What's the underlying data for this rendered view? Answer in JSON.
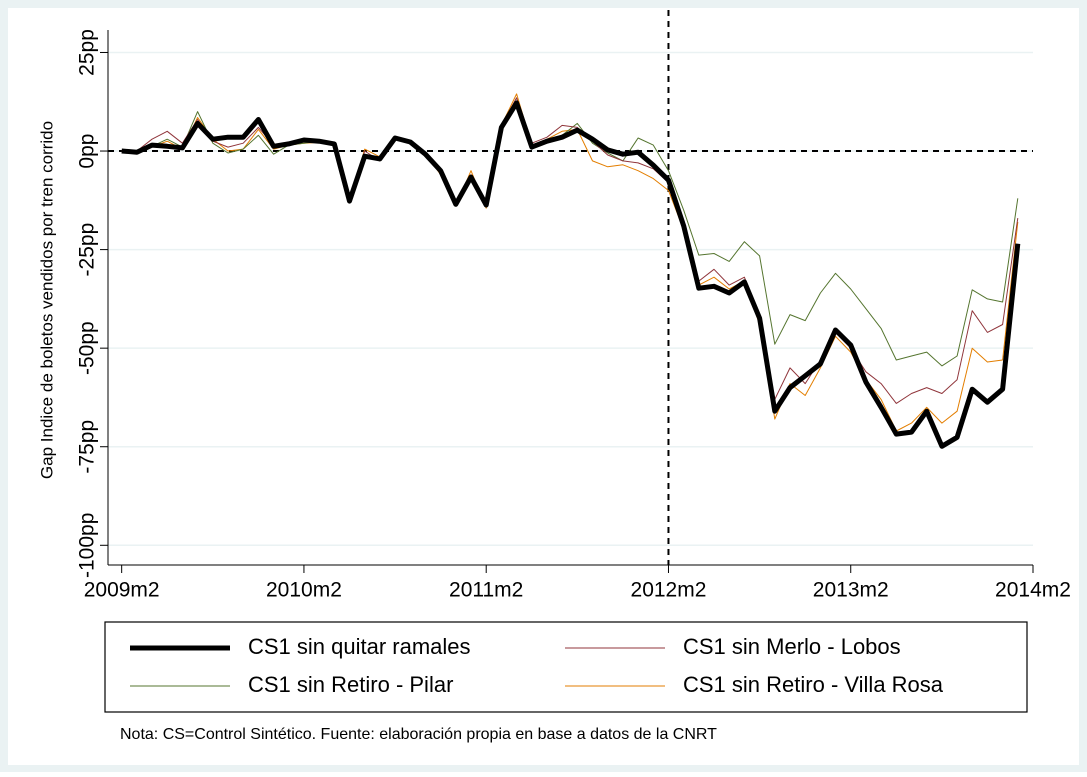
{
  "chart_data": {
    "type": "line",
    "y_label": "Gap Indice de boletos vendidos por tren corrido",
    "note": "Nota: CS=Control Sintético. Fuente: elaboración propia en base a datos de la CNRT",
    "x": [
      589,
      590,
      591,
      592,
      593,
      594,
      595,
      596,
      597,
      598,
      599,
      600,
      601,
      602,
      603,
      604,
      605,
      606,
      607,
      608,
      609,
      610,
      611,
      612,
      613,
      614,
      615,
      616,
      617,
      618,
      619,
      620,
      621,
      622,
      623,
      624,
      625,
      626,
      627,
      628,
      629,
      630,
      631,
      632,
      633,
      634,
      635,
      636,
      637,
      638,
      639,
      640,
      641,
      642,
      643,
      644,
      645,
      646,
      647,
      648
    ],
    "series": [
      {
        "name": "CS1 sin quitar ramales",
        "color": "#000000",
        "width": 5,
        "values": [
          0,
          -0.3,
          1.5,
          1.2,
          0.8,
          7,
          3,
          3.5,
          3.5,
          8,
          1.2,
          1.8,
          2.8,
          2.5,
          1.8,
          -12.7,
          -1.3,
          -2,
          3.3,
          2.3,
          -0.8,
          -5,
          -13.5,
          -6.6,
          -13.7,
          6,
          12.2,
          1,
          2.5,
          3.5,
          5.3,
          3,
          0.3,
          -0.8,
          -0.3,
          -3.6,
          -7.4,
          -19,
          -34.8,
          -34.3,
          -36,
          -33.2,
          -42.4,
          -66,
          -60,
          -57,
          -54,
          -45.4,
          -49.2,
          -58.6,
          -65,
          -71.8,
          -71.3,
          -66,
          -74.9,
          -72.6,
          -60.4,
          -63.7,
          -60.4,
          -23.5
        ]
      },
      {
        "name": "CS1 sin Merlo - Lobos",
        "color": "#90353b",
        "width": 1,
        "values": [
          0,
          0,
          3,
          5,
          2,
          8,
          2.5,
          1,
          2,
          6,
          1.5,
          2,
          2.5,
          2.8,
          2,
          -12.5,
          0,
          -2.5,
          3.5,
          2.5,
          -0.5,
          -4.5,
          -13,
          -6,
          -13.5,
          6.5,
          13.5,
          2,
          3.5,
          6.5,
          6,
          2.5,
          -1,
          -2.5,
          -3,
          -4.5,
          -8,
          -18,
          -33,
          -30,
          -34,
          -32,
          -42,
          -63,
          -55,
          -59,
          -53,
          -46,
          -50,
          -56,
          -59,
          -64,
          -61.5,
          -60,
          -61.5,
          -58,
          -40.5,
          -46,
          -44,
          -17
        ]
      },
      {
        "name": "CS1 sin Retiro - Pilar",
        "color": "#55752f",
        "width": 1,
        "values": [
          0,
          -0.5,
          1.2,
          3,
          1,
          10,
          2,
          -0.5,
          0.5,
          4,
          -0.8,
          1.5,
          2,
          2.5,
          1.5,
          -12.5,
          -1,
          -2.5,
          3,
          2.5,
          -0.5,
          -5.5,
          -13,
          -6,
          -14,
          5.5,
          12.5,
          1.5,
          2.8,
          4,
          7,
          2,
          -0.5,
          -2.5,
          3.3,
          1.5,
          -5,
          -15,
          -26.4,
          -26,
          -28,
          -23,
          -26.6,
          -49,
          -41.5,
          -43,
          -36,
          -31,
          -35,
          -40,
          -45,
          -53,
          -52,
          -51,
          -54.5,
          -52,
          -35.2,
          -37.5,
          -38.3,
          -12
        ]
      },
      {
        "name": "CS1 sin Retiro - Villa Rosa",
        "color": "#e37e00",
        "width": 1,
        "values": [
          0,
          -0.5,
          1,
          2.5,
          0.5,
          8.5,
          3,
          0,
          0.5,
          5.5,
          0.5,
          1.5,
          2,
          2.2,
          1.5,
          -13,
          0.5,
          -1.5,
          3.5,
          1.8,
          -0.5,
          -6,
          -14,
          -5,
          -14.5,
          6.5,
          14.5,
          1.5,
          3,
          5,
          5.5,
          -2.5,
          -4,
          -3.5,
          -5,
          -7,
          -10,
          -20,
          -34,
          -32,
          -35,
          -33,
          -44,
          -68,
          -59,
          -62,
          -55,
          -47,
          -51,
          -58,
          -63,
          -71,
          -69,
          -65,
          -69,
          -66,
          -50,
          -53.5,
          -53,
          -18
        ]
      }
    ],
    "xlim": [
      588.1,
      649
    ],
    "xticks": [
      {
        "value": 589,
        "label": "2009m2"
      },
      {
        "value": 601,
        "label": "2010m2"
      },
      {
        "value": 613,
        "label": "2011m2"
      },
      {
        "value": 625,
        "label": "2012m2"
      },
      {
        "value": 637,
        "label": "2013m2"
      },
      {
        "value": 649,
        "label": "2014m2"
      }
    ],
    "ylim": [
      -105,
      30.7
    ],
    "yticks": [
      {
        "value": -100,
        "label": "-100pp"
      },
      {
        "value": -75,
        "label": "-75pp"
      },
      {
        "value": -50,
        "label": "-50pp"
      },
      {
        "value": -25,
        "label": "-25pp"
      },
      {
        "value": 0,
        "label": "0pp"
      },
      {
        "value": 25,
        "label": "25pp"
      }
    ],
    "hline": 0,
    "vline": 625,
    "grid": true
  }
}
